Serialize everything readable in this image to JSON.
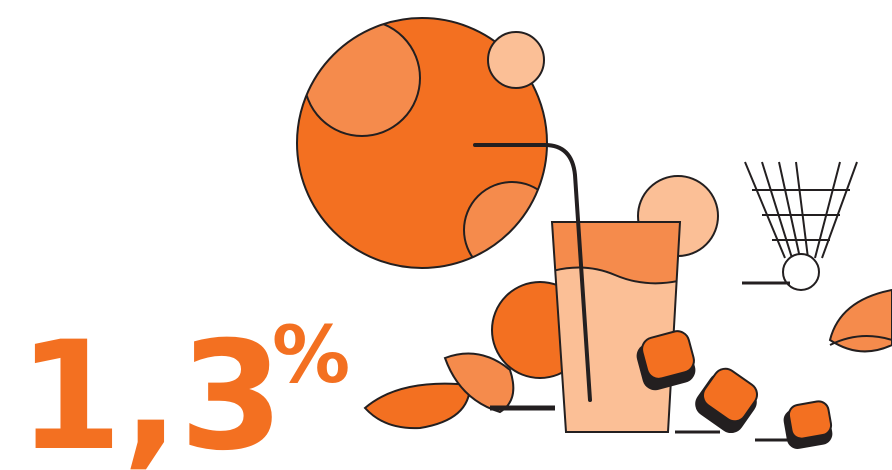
{
  "headline": {
    "number": "1,3",
    "unit": "%"
  }
}
